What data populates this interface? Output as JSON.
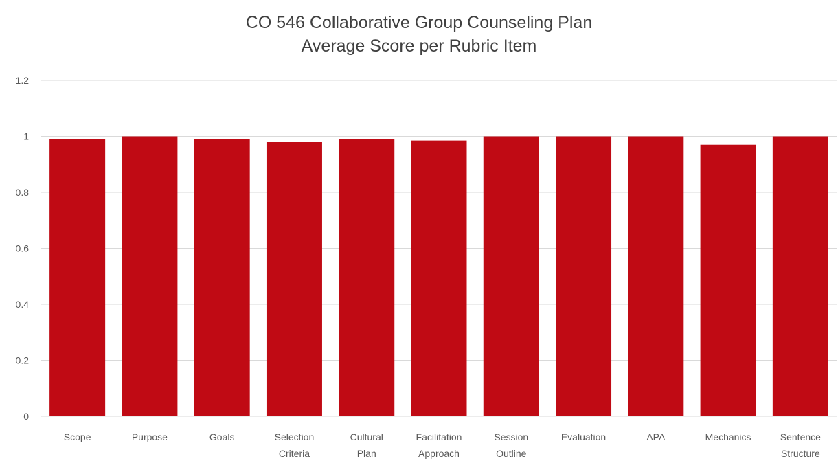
{
  "chart_data": {
    "type": "bar",
    "title": [
      "CO 546 Collaborative Group Counseling Plan",
      "Average Score per Rubric Item"
    ],
    "xlabel": "",
    "ylabel": "",
    "categories": [
      [
        "Scope"
      ],
      [
        "Purpose"
      ],
      [
        "Goals"
      ],
      [
        "Selection",
        "Criteria"
      ],
      [
        "Cultural",
        "Plan"
      ],
      [
        "Facilitation",
        "Approach"
      ],
      [
        "Session",
        "Outline"
      ],
      [
        "Evaluation"
      ],
      [
        "APA"
      ],
      [
        "Mechanics"
      ],
      [
        "Sentence",
        "Structure"
      ]
    ],
    "values": [
      0.99,
      1.0,
      0.99,
      0.98,
      0.99,
      0.985,
      1.0,
      1.0,
      1.0,
      0.97,
      1.0
    ],
    "ylim": [
      0,
      1.2
    ],
    "yticks": [
      "0",
      "0.2",
      "0.4",
      "0.6",
      "0.8",
      "1",
      "1.2"
    ],
    "grid": true,
    "legend": "none",
    "bar_color": "#C00A14",
    "grid_color": "#D9D9D9"
  }
}
